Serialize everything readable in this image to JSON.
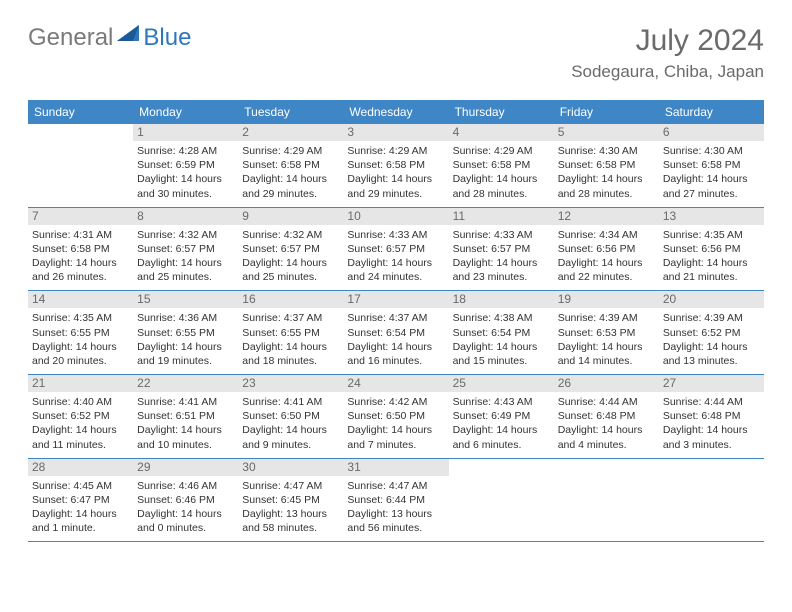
{
  "logo": {
    "general": "General",
    "blue": "Blue"
  },
  "title": "July 2024",
  "location": "Sodegaura, Chiba, Japan",
  "colors": {
    "headerBg": "#3e86c6",
    "headerText": "#ffffff",
    "dayNumBg": "#e6e6e6",
    "dayNumText": "#6a6a6a",
    "borderColor": "#3e86c6",
    "bodyText": "#333333",
    "titleText": "#6a6a6a",
    "logoGray": "#7a7a7a",
    "logoBlue": "#2f77bb"
  },
  "headers": [
    "Sunday",
    "Monday",
    "Tuesday",
    "Wednesday",
    "Thursday",
    "Friday",
    "Saturday"
  ],
  "weeks": [
    [
      {},
      {
        "n": "1",
        "sr": "Sunrise: 4:28 AM",
        "ss": "Sunset: 6:59 PM",
        "d1": "Daylight: 14 hours",
        "d2": "and 30 minutes."
      },
      {
        "n": "2",
        "sr": "Sunrise: 4:29 AM",
        "ss": "Sunset: 6:58 PM",
        "d1": "Daylight: 14 hours",
        "d2": "and 29 minutes."
      },
      {
        "n": "3",
        "sr": "Sunrise: 4:29 AM",
        "ss": "Sunset: 6:58 PM",
        "d1": "Daylight: 14 hours",
        "d2": "and 29 minutes."
      },
      {
        "n": "4",
        "sr": "Sunrise: 4:29 AM",
        "ss": "Sunset: 6:58 PM",
        "d1": "Daylight: 14 hours",
        "d2": "and 28 minutes."
      },
      {
        "n": "5",
        "sr": "Sunrise: 4:30 AM",
        "ss": "Sunset: 6:58 PM",
        "d1": "Daylight: 14 hours",
        "d2": "and 28 minutes."
      },
      {
        "n": "6",
        "sr": "Sunrise: 4:30 AM",
        "ss": "Sunset: 6:58 PM",
        "d1": "Daylight: 14 hours",
        "d2": "and 27 minutes."
      }
    ],
    [
      {
        "n": "7",
        "sr": "Sunrise: 4:31 AM",
        "ss": "Sunset: 6:58 PM",
        "d1": "Daylight: 14 hours",
        "d2": "and 26 minutes."
      },
      {
        "n": "8",
        "sr": "Sunrise: 4:32 AM",
        "ss": "Sunset: 6:57 PM",
        "d1": "Daylight: 14 hours",
        "d2": "and 25 minutes."
      },
      {
        "n": "9",
        "sr": "Sunrise: 4:32 AM",
        "ss": "Sunset: 6:57 PM",
        "d1": "Daylight: 14 hours",
        "d2": "and 25 minutes."
      },
      {
        "n": "10",
        "sr": "Sunrise: 4:33 AM",
        "ss": "Sunset: 6:57 PM",
        "d1": "Daylight: 14 hours",
        "d2": "and 24 minutes."
      },
      {
        "n": "11",
        "sr": "Sunrise: 4:33 AM",
        "ss": "Sunset: 6:57 PM",
        "d1": "Daylight: 14 hours",
        "d2": "and 23 minutes."
      },
      {
        "n": "12",
        "sr": "Sunrise: 4:34 AM",
        "ss": "Sunset: 6:56 PM",
        "d1": "Daylight: 14 hours",
        "d2": "and 22 minutes."
      },
      {
        "n": "13",
        "sr": "Sunrise: 4:35 AM",
        "ss": "Sunset: 6:56 PM",
        "d1": "Daylight: 14 hours",
        "d2": "and 21 minutes."
      }
    ],
    [
      {
        "n": "14",
        "sr": "Sunrise: 4:35 AM",
        "ss": "Sunset: 6:55 PM",
        "d1": "Daylight: 14 hours",
        "d2": "and 20 minutes."
      },
      {
        "n": "15",
        "sr": "Sunrise: 4:36 AM",
        "ss": "Sunset: 6:55 PM",
        "d1": "Daylight: 14 hours",
        "d2": "and 19 minutes."
      },
      {
        "n": "16",
        "sr": "Sunrise: 4:37 AM",
        "ss": "Sunset: 6:55 PM",
        "d1": "Daylight: 14 hours",
        "d2": "and 18 minutes."
      },
      {
        "n": "17",
        "sr": "Sunrise: 4:37 AM",
        "ss": "Sunset: 6:54 PM",
        "d1": "Daylight: 14 hours",
        "d2": "and 16 minutes."
      },
      {
        "n": "18",
        "sr": "Sunrise: 4:38 AM",
        "ss": "Sunset: 6:54 PM",
        "d1": "Daylight: 14 hours",
        "d2": "and 15 minutes."
      },
      {
        "n": "19",
        "sr": "Sunrise: 4:39 AM",
        "ss": "Sunset: 6:53 PM",
        "d1": "Daylight: 14 hours",
        "d2": "and 14 minutes."
      },
      {
        "n": "20",
        "sr": "Sunrise: 4:39 AM",
        "ss": "Sunset: 6:52 PM",
        "d1": "Daylight: 14 hours",
        "d2": "and 13 minutes."
      }
    ],
    [
      {
        "n": "21",
        "sr": "Sunrise: 4:40 AM",
        "ss": "Sunset: 6:52 PM",
        "d1": "Daylight: 14 hours",
        "d2": "and 11 minutes."
      },
      {
        "n": "22",
        "sr": "Sunrise: 4:41 AM",
        "ss": "Sunset: 6:51 PM",
        "d1": "Daylight: 14 hours",
        "d2": "and 10 minutes."
      },
      {
        "n": "23",
        "sr": "Sunrise: 4:41 AM",
        "ss": "Sunset: 6:50 PM",
        "d1": "Daylight: 14 hours",
        "d2": "and 9 minutes."
      },
      {
        "n": "24",
        "sr": "Sunrise: 4:42 AM",
        "ss": "Sunset: 6:50 PM",
        "d1": "Daylight: 14 hours",
        "d2": "and 7 minutes."
      },
      {
        "n": "25",
        "sr": "Sunrise: 4:43 AM",
        "ss": "Sunset: 6:49 PM",
        "d1": "Daylight: 14 hours",
        "d2": "and 6 minutes."
      },
      {
        "n": "26",
        "sr": "Sunrise: 4:44 AM",
        "ss": "Sunset: 6:48 PM",
        "d1": "Daylight: 14 hours",
        "d2": "and 4 minutes."
      },
      {
        "n": "27",
        "sr": "Sunrise: 4:44 AM",
        "ss": "Sunset: 6:48 PM",
        "d1": "Daylight: 14 hours",
        "d2": "and 3 minutes."
      }
    ],
    [
      {
        "n": "28",
        "sr": "Sunrise: 4:45 AM",
        "ss": "Sunset: 6:47 PM",
        "d1": "Daylight: 14 hours",
        "d2": "and 1 minute."
      },
      {
        "n": "29",
        "sr": "Sunrise: 4:46 AM",
        "ss": "Sunset: 6:46 PM",
        "d1": "Daylight: 14 hours",
        "d2": "and 0 minutes."
      },
      {
        "n": "30",
        "sr": "Sunrise: 4:47 AM",
        "ss": "Sunset: 6:45 PM",
        "d1": "Daylight: 13 hours",
        "d2": "and 58 minutes."
      },
      {
        "n": "31",
        "sr": "Sunrise: 4:47 AM",
        "ss": "Sunset: 6:44 PM",
        "d1": "Daylight: 13 hours",
        "d2": "and 56 minutes."
      },
      {},
      {},
      {}
    ]
  ]
}
